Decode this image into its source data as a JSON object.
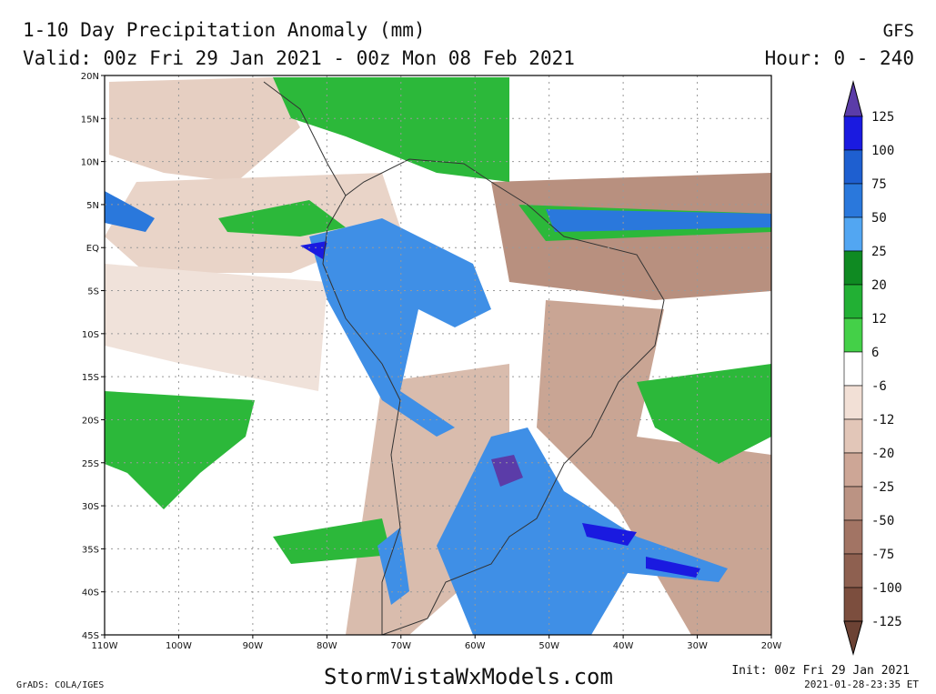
{
  "header": {
    "title": "1-10 Day Precipitation Anomaly (mm)",
    "subtitle": "Valid: 00z Fri 29 Jan 2021 - 00z Mon 08 Feb 2021",
    "model": "GFS",
    "hours": "Hour: 0 - 240"
  },
  "map": {
    "lat_labels": [
      "20N",
      "15N",
      "10N",
      "5N",
      "EQ",
      "5S",
      "10S",
      "15S",
      "20S",
      "25S",
      "30S",
      "35S",
      "40S",
      "45S"
    ],
    "lon_labels": [
      "110W",
      "100W",
      "90W",
      "80W",
      "70W",
      "60W",
      "50W",
      "40W",
      "30W",
      "20W"
    ]
  },
  "colorbar": {
    "labels": [
      125,
      100,
      75,
      50,
      25,
      20,
      12,
      6,
      -6,
      -12,
      -20,
      -25,
      -50,
      -75,
      -100,
      -125
    ],
    "colors": [
      "#5b3ca8",
      "#1a1ae0",
      "#1e5fd0",
      "#2a78dc",
      "#52a6f2",
      "#0f8a22",
      "#22b034",
      "#44d048",
      "#ffffff",
      "#f2e0d6",
      "#e2c6b8",
      "#cda696",
      "#bb9383",
      "#a27464",
      "#8e6050",
      "#7c4e3e",
      "#6c4234"
    ]
  },
  "footer": {
    "left": "GrADS: COLA/IGES",
    "site": "StormVistaWxModels.com",
    "init": "Init: 00z Fri 29 Jan 2021",
    "stamp": "2021-01-28-23:35 ET"
  }
}
